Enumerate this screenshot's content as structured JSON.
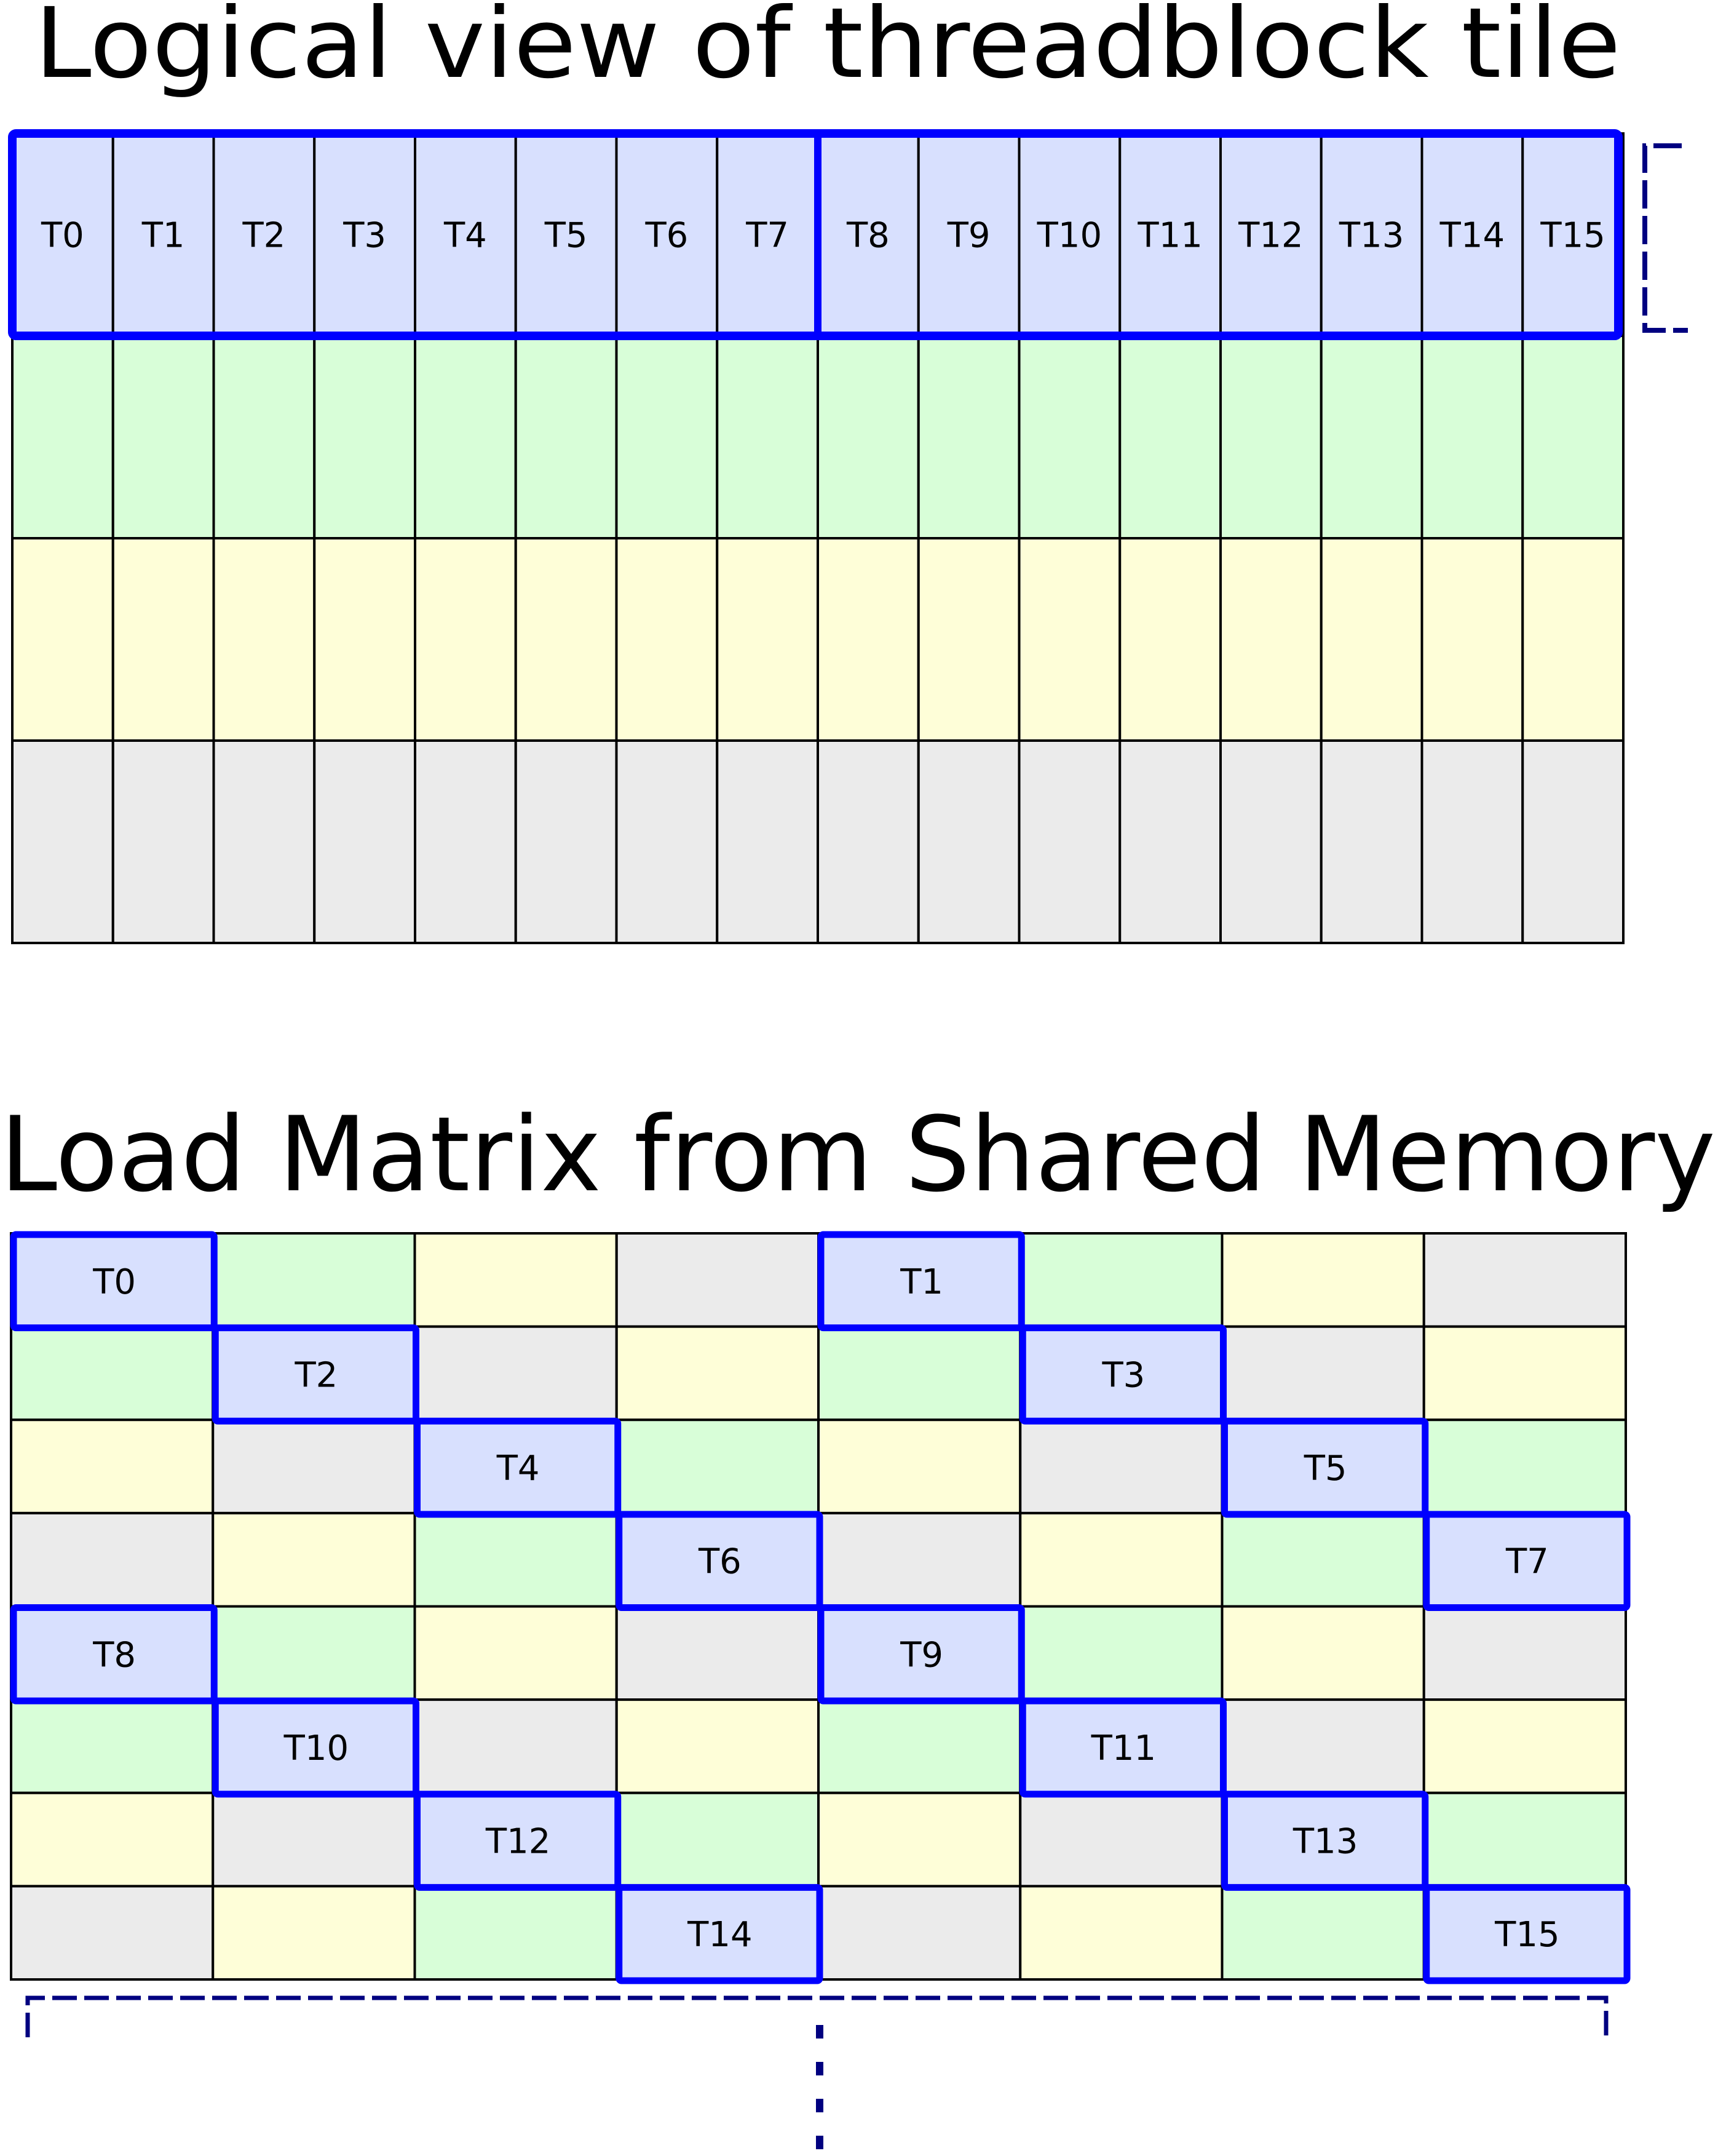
{
  "colors": {
    "thread": "#d8e0fe",
    "green": "#d8fed8",
    "yellow": "#fefed8",
    "gray": "#ebebeb",
    "outline": "#0000ff",
    "bracket": "#000080",
    "grid_line": "#000000"
  },
  "top": {
    "title": "Logical view of threadblock tile",
    "row_colors": [
      "thread",
      "green",
      "yellow",
      "gray"
    ],
    "threads": [
      "T0",
      "T1",
      "T2",
      "T3",
      "T4",
      "T5",
      "T6",
      "T7",
      "T8",
      "T9",
      "T10",
      "T11",
      "T12",
      "T13",
      "T14",
      "T15"
    ]
  },
  "bottom": {
    "title": "Load Matrix from Shared Memory",
    "color_cycle": [
      "thread",
      "green",
      "yellow",
      "gray"
    ],
    "threads": [
      {
        "label": "T0",
        "row": 0,
        "col": 0
      },
      {
        "label": "T1",
        "row": 0,
        "col": 4
      },
      {
        "label": "T2",
        "row": 1,
        "col": 1
      },
      {
        "label": "T3",
        "row": 1,
        "col": 5
      },
      {
        "label": "T4",
        "row": 2,
        "col": 2
      },
      {
        "label": "T5",
        "row": 2,
        "col": 6
      },
      {
        "label": "T6",
        "row": 3,
        "col": 3
      },
      {
        "label": "T7",
        "row": 3,
        "col": 7
      },
      {
        "label": "T8",
        "row": 4,
        "col": 0
      },
      {
        "label": "T9",
        "row": 4,
        "col": 4
      },
      {
        "label": "T10",
        "row": 5,
        "col": 1
      },
      {
        "label": "T11",
        "row": 5,
        "col": 5
      },
      {
        "label": "T12",
        "row": 6,
        "col": 2
      },
      {
        "label": "T13",
        "row": 6,
        "col": 6
      },
      {
        "label": "T14",
        "row": 7,
        "col": 3
      },
      {
        "label": "T15",
        "row": 7,
        "col": 7
      }
    ]
  }
}
